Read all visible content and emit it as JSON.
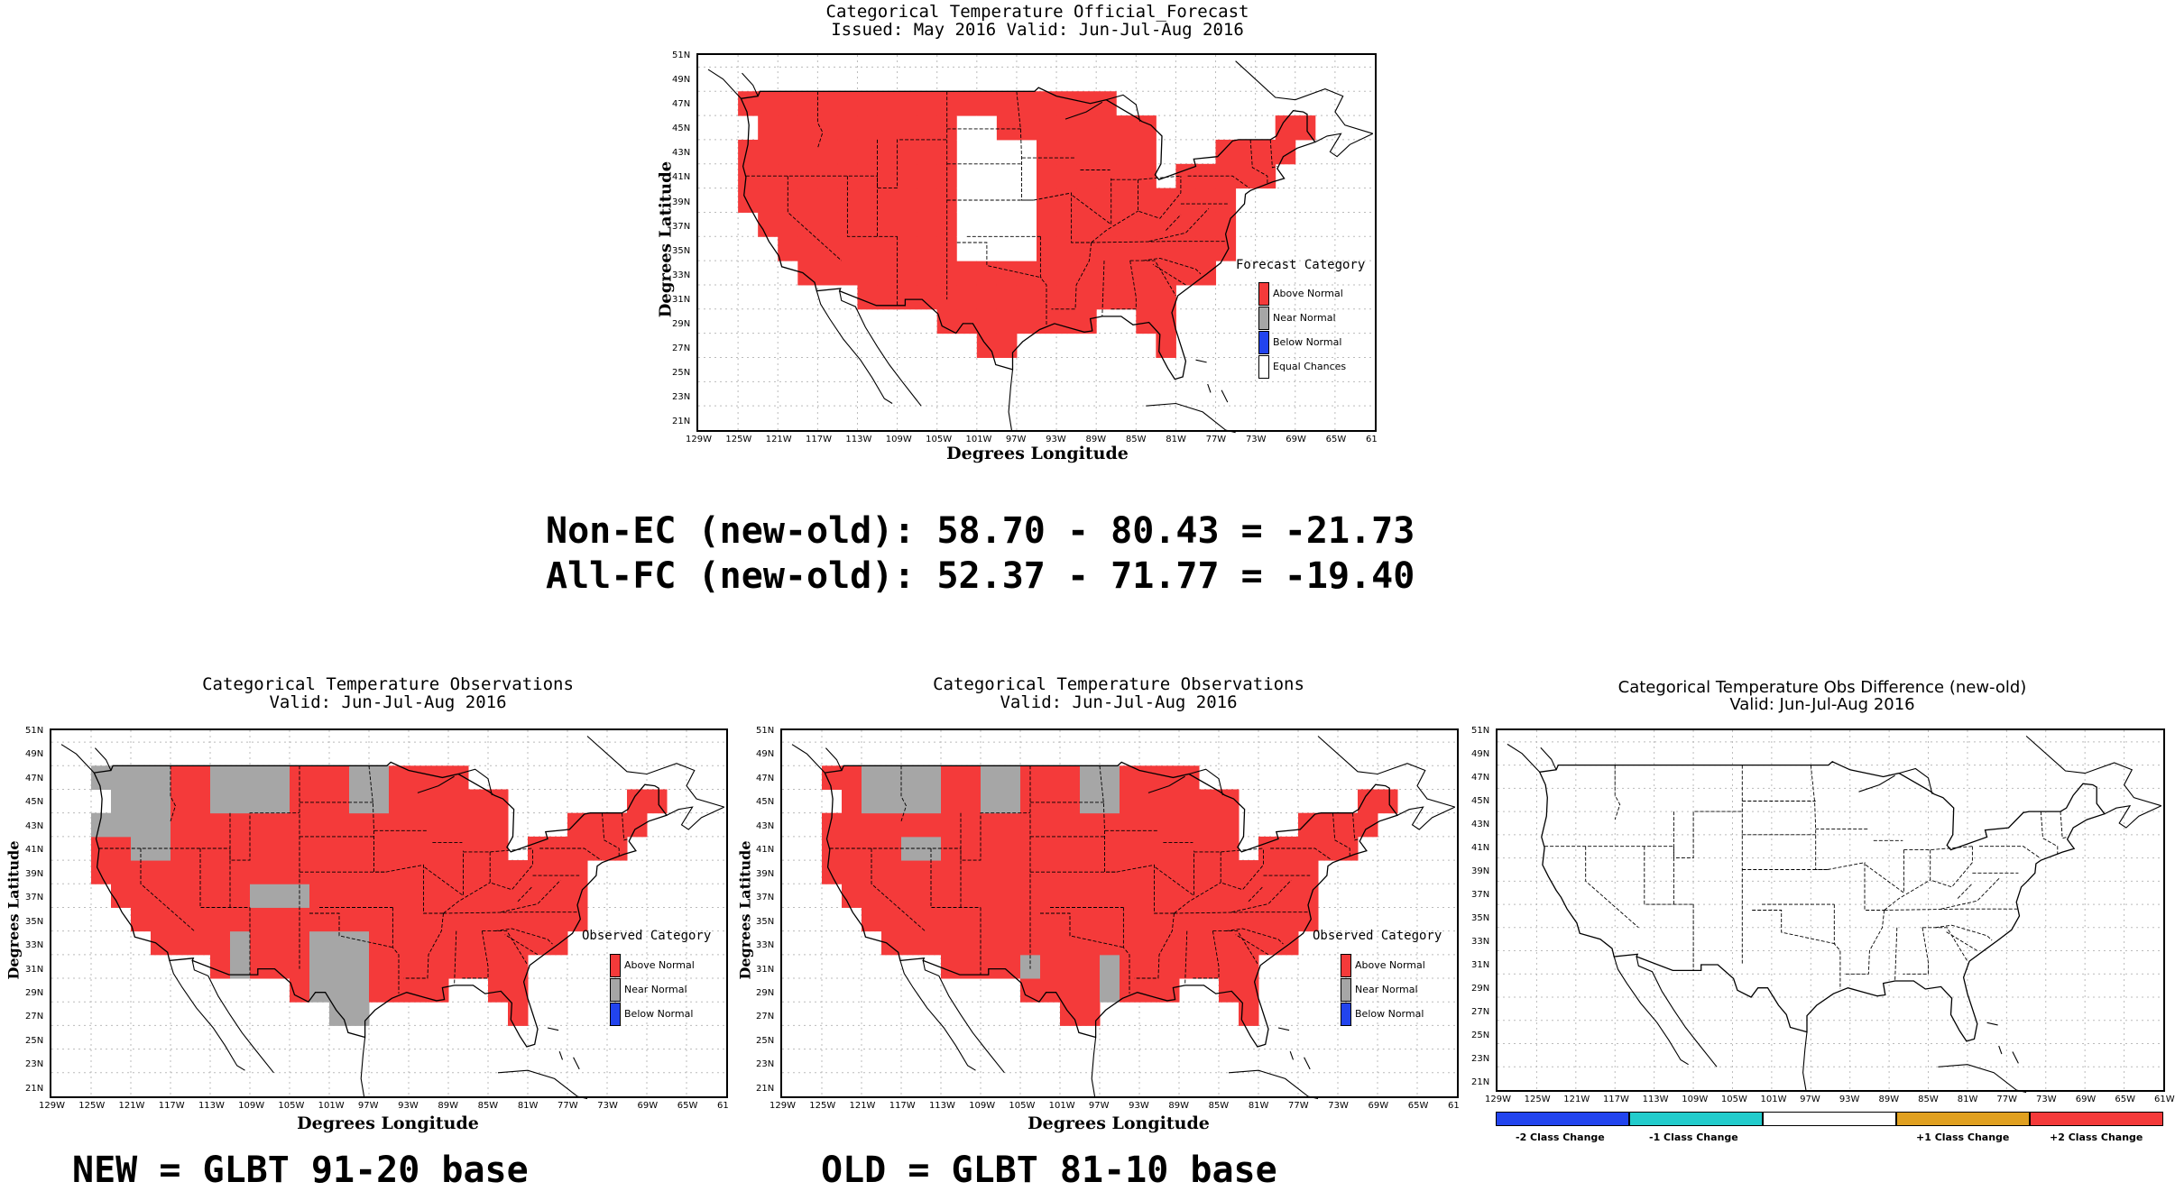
{
  "maps": [
    {
      "id": "forecast",
      "title_line1": "Categorical Temperature Official_Forecast",
      "title_line2": "Issued: May 2016 Valid: Jun-Jul-Aug 2016",
      "xlabel": "Degrees Longitude",
      "ylabel": "Degrees Latitude",
      "legend_title": "Forecast Category",
      "legend": [
        {
          "label": "Above Normal",
          "color": "#f43a3a"
        },
        {
          "label": "Near Normal",
          "color": "#a6a6a6"
        },
        {
          "label": "Below Normal",
          "color": "#2244ee"
        },
        {
          "label": "Equal Chances",
          "color": "#ffffff"
        }
      ]
    },
    {
      "id": "obs-new",
      "title_line1": "Categorical Temperature Observations",
      "title_line2": "Valid: Jun-Jul-Aug 2016",
      "xlabel": "Degrees Longitude",
      "ylabel": "Degrees Latitude",
      "legend_title": "Observed Category",
      "legend": [
        {
          "label": "Above Normal",
          "color": "#f43a3a"
        },
        {
          "label": "Near Normal",
          "color": "#a6a6a6"
        },
        {
          "label": "Below Normal",
          "color": "#2244ee"
        }
      ]
    },
    {
      "id": "obs-old",
      "title_line1": "Categorical Temperature Observations",
      "title_line2": "Valid: Jun-Jul-Aug 2016",
      "xlabel": "Degrees Longitude",
      "ylabel": "Degrees Latitude",
      "legend_title": "Observed Category",
      "legend": [
        {
          "label": "Above Normal",
          "color": "#f43a3a"
        },
        {
          "label": "Near Normal",
          "color": "#a6a6a6"
        },
        {
          "label": "Below Normal",
          "color": "#2244ee"
        }
      ]
    },
    {
      "id": "diff",
      "title_line1": "Categorical Temperature Obs Difference (new-old)",
      "title_line2": "Valid: Jun-Jul-Aug 2016",
      "colorbar": [
        {
          "label": "-2 Class Change",
          "color": "#2244ee"
        },
        {
          "label": "-1 Class Change",
          "color": "#22cccc"
        },
        {
          "label": "",
          "color": "#ffffff"
        },
        {
          "label": "+1 Class Change",
          "color": "#e0a020"
        },
        {
          "label": "+2 Class Change",
          "color": "#f43a3a"
        }
      ]
    }
  ],
  "lon_ticks": [
    "129W",
    "125W",
    "121W",
    "117W",
    "113W",
    "109W",
    "105W",
    "101W",
    "97W",
    "93W",
    "89W",
    "85W",
    "81W",
    "77W",
    "73W",
    "69W",
    "65W",
    "61"
  ],
  "lon_ticks_diff": [
    "129W",
    "125W",
    "121W",
    "117W",
    "113W",
    "109W",
    "105W",
    "101W",
    "97W",
    "93W",
    "89W",
    "85W",
    "81W",
    "77W",
    "73W",
    "69W",
    "65W",
    "61W"
  ],
  "lat_ticks": [
    "51N",
    "49N",
    "47N",
    "45N",
    "43N",
    "41N",
    "39N",
    "37N",
    "35N",
    "33N",
    "31N",
    "29N",
    "27N",
    "25N",
    "23N",
    "21N"
  ],
  "stats": {
    "line1": "Non-EC (new-old): 58.70 - 80.43 = -21.73",
    "line2": "All-FC (new-old): 52.37 - 71.77 = -19.40"
  },
  "bases": {
    "new": "NEW = GLBT 91-20 base",
    "old": "OLD = GLBT 81-10 base"
  },
  "colors": {
    "above": "#f43a3a",
    "near": "#a6a6a6",
    "below": "#2244ee",
    "minus1": "#22cccc",
    "plus1": "#e0a020"
  }
}
